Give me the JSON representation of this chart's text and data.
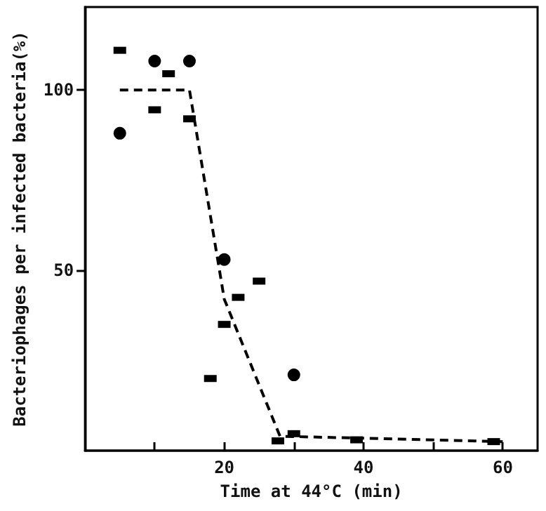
{
  "chart_data": {
    "type": "scatter",
    "xlabel": "Time at 44°C (min)",
    "ylabel": "Bacteriophages per infected bacteria(%)",
    "xlim": [
      0,
      65
    ],
    "ylim": [
      0,
      123
    ],
    "xticks": [
      {
        "value": 10,
        "label": null
      },
      20,
      {
        "value": 30,
        "label": null
      },
      40,
      {
        "value": 50,
        "label": null
      },
      60
    ],
    "yticks": [
      50,
      100
    ],
    "grid": false,
    "series": [
      {
        "color": "#000000",
        "marker": "circle",
        "x": [
          5,
          10,
          15,
          20,
          30
        ],
        "values": [
          88,
          108,
          108,
          53,
          21
        ]
      },
      {
        "color": "#000000",
        "marker": "square",
        "x": [
          5,
          10,
          12,
          15,
          18,
          20,
          22,
          25,
          27.7,
          30,
          39,
          58.7
        ],
        "values": [
          111,
          94.5,
          104.5,
          92,
          20,
          35,
          42.5,
          47,
          2.7,
          4.7,
          3,
          2.5
        ]
      },
      {
        "type": "line",
        "color": "#000000",
        "marker": "none",
        "line_style": "dashed",
        "x": [
          5,
          15,
          20,
          28,
          60
        ],
        "values": [
          100,
          100,
          42,
          4,
          2.5
        ]
      }
    ]
  }
}
